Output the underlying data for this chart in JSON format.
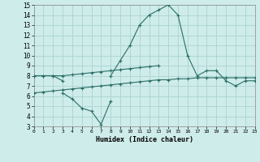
{
  "x": [
    0,
    1,
    2,
    3,
    4,
    5,
    6,
    7,
    8,
    9,
    10,
    11,
    12,
    13,
    14,
    15,
    16,
    17,
    18,
    19,
    20,
    21,
    22,
    23
  ],
  "line_main": [
    8,
    8,
    8,
    7.5,
    null,
    null,
    null,
    null,
    8,
    9.5,
    11,
    13,
    14,
    14.5,
    15,
    14,
    10,
    8,
    8.5,
    8.5,
    7.5,
    7,
    7.5,
    7.5
  ],
  "line_upper_flat": [
    8,
    8,
    8,
    8,
    8.1,
    8.2,
    8.3,
    8.4,
    8.5,
    8.6,
    8.7,
    8.8,
    8.9,
    9.0,
    null,
    null,
    null,
    null,
    null,
    null,
    null,
    null,
    null,
    null
  ],
  "line_lower_dip": [
    null,
    null,
    null,
    6.3,
    5.7,
    4.8,
    4.5,
    3.2,
    5.5,
    null,
    null,
    null,
    null,
    null,
    null,
    null,
    null,
    null,
    null,
    null,
    null,
    null,
    null,
    null
  ],
  "line_lower_flat": [
    6.3,
    6.4,
    6.5,
    6.6,
    6.7,
    6.8,
    6.9,
    7.0,
    7.1,
    7.2,
    7.3,
    7.4,
    7.5,
    7.6,
    7.6,
    7.7,
    7.7,
    7.8,
    7.8,
    7.8,
    7.8,
    7.8,
    7.8,
    7.8
  ],
  "color": "#2a6e65",
  "bg_color": "#ceecea",
  "grid_color": "#aad4d0",
  "xlabel": "Humidex (Indice chaleur)",
  "ylim": [
    3,
    15
  ],
  "xlim": [
    0,
    23
  ],
  "yticks": [
    3,
    4,
    5,
    6,
    7,
    8,
    9,
    10,
    11,
    12,
    13,
    14,
    15
  ],
  "xticks": [
    0,
    1,
    2,
    3,
    4,
    5,
    6,
    7,
    8,
    9,
    10,
    11,
    12,
    13,
    14,
    15,
    16,
    17,
    18,
    19,
    20,
    21,
    22,
    23
  ]
}
